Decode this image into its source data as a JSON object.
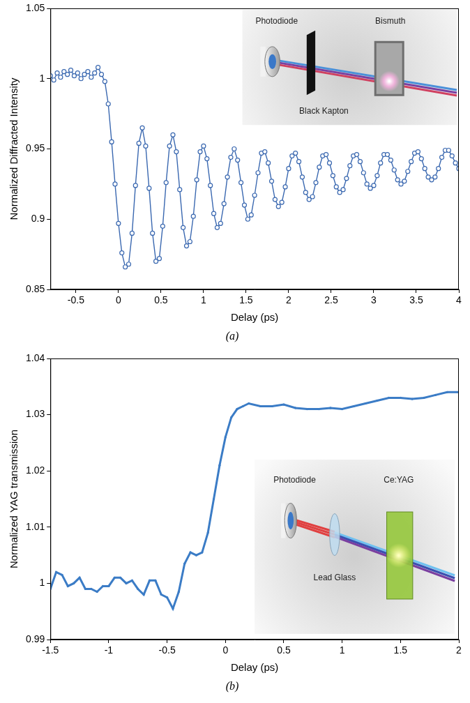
{
  "chart_data": [
    {
      "type": "line",
      "title": "(a)",
      "x_label": "Delay (ps)",
      "y_label": "Normalized Diffracted Intensity",
      "color": "#3a68b0",
      "marker": "open_circle",
      "line_style": "solid",
      "grid": false,
      "xlim": [
        -0.8,
        4
      ],
      "xticks": [
        -0.5,
        0,
        0.5,
        1,
        1.5,
        2,
        2.5,
        3,
        3.5,
        4
      ],
      "ylim": [
        0.85,
        1.05
      ],
      "yticks": [
        0.85,
        0.9,
        0.95,
        1,
        1.05
      ],
      "annotations": [
        "Photodiode",
        "Bismuth",
        "Black Kapton"
      ],
      "x": [
        -0.8,
        -0.76,
        -0.72,
        -0.68,
        -0.64,
        -0.6,
        -0.56,
        -0.52,
        -0.48,
        -0.44,
        -0.4,
        -0.36,
        -0.32,
        -0.28,
        -0.24,
        -0.2,
        -0.16,
        -0.12,
        -0.08,
        -0.04,
        0,
        0.04,
        0.08,
        0.12,
        0.16,
        0.2,
        0.24,
        0.28,
        0.32,
        0.36,
        0.4,
        0.44,
        0.48,
        0.52,
        0.56,
        0.6,
        0.64,
        0.68,
        0.72,
        0.76,
        0.8,
        0.84,
        0.88,
        0.92,
        0.96,
        1,
        1.04,
        1.08,
        1.12,
        1.16,
        1.2,
        1.24,
        1.28,
        1.32,
        1.36,
        1.4,
        1.44,
        1.48,
        1.52,
        1.56,
        1.6,
        1.64,
        1.68,
        1.72,
        1.76,
        1.8,
        1.84,
        1.88,
        1.92,
        1.96,
        2,
        2.04,
        2.08,
        2.12,
        2.16,
        2.2,
        2.24,
        2.28,
        2.32,
        2.36,
        2.4,
        2.44,
        2.48,
        2.52,
        2.56,
        2.6,
        2.64,
        2.68,
        2.72,
        2.76,
        2.8,
        2.84,
        2.88,
        2.92,
        2.96,
        3,
        3.04,
        3.08,
        3.12,
        3.16,
        3.2,
        3.24,
        3.28,
        3.32,
        3.36,
        3.4,
        3.44,
        3.48,
        3.52,
        3.56,
        3.6,
        3.64,
        3.68,
        3.72,
        3.76,
        3.8,
        3.84,
        3.88,
        3.92,
        3.96,
        4
      ],
      "values": [
        1.002,
        0.999,
        1.004,
        1.001,
        1.005,
        1.003,
        1.006,
        1.002,
        1.004,
        1.0,
        1.003,
        1.005,
        1.001,
        1.004,
        1.008,
        1.003,
        0.998,
        0.982,
        0.955,
        0.925,
        0.897,
        0.876,
        0.866,
        0.868,
        0.89,
        0.924,
        0.954,
        0.965,
        0.952,
        0.922,
        0.89,
        0.87,
        0.872,
        0.895,
        0.926,
        0.952,
        0.96,
        0.948,
        0.921,
        0.894,
        0.881,
        0.884,
        0.902,
        0.928,
        0.948,
        0.952,
        0.943,
        0.924,
        0.904,
        0.894,
        0.897,
        0.911,
        0.93,
        0.944,
        0.95,
        0.942,
        0.926,
        0.91,
        0.9,
        0.903,
        0.917,
        0.933,
        0.947,
        0.948,
        0.94,
        0.927,
        0.914,
        0.909,
        0.912,
        0.923,
        0.936,
        0.945,
        0.947,
        0.941,
        0.93,
        0.919,
        0.914,
        0.916,
        0.926,
        0.937,
        0.945,
        0.946,
        0.94,
        0.931,
        0.923,
        0.919,
        0.921,
        0.929,
        0.938,
        0.945,
        0.946,
        0.941,
        0.933,
        0.925,
        0.922,
        0.924,
        0.931,
        0.94,
        0.946,
        0.946,
        0.942,
        0.935,
        0.928,
        0.925,
        0.927,
        0.934,
        0.941,
        0.947,
        0.948,
        0.943,
        0.936,
        0.93,
        0.928,
        0.93,
        0.936,
        0.944,
        0.949,
        0.949,
        0.945,
        0.94,
        0.936
      ]
    },
    {
      "type": "line",
      "title": "(b)",
      "x_label": "Delay (ps)",
      "y_label": "Normalized YAG transmission",
      "color": "#3b7cc6",
      "marker": "circle",
      "line_style": "solid",
      "grid": false,
      "xlim": [
        -1.5,
        2
      ],
      "xticks": [
        -1.5,
        -1,
        -0.5,
        0,
        0.5,
        1,
        1.5,
        2
      ],
      "ylim": [
        0.99,
        1.04
      ],
      "yticks": [
        0.99,
        1,
        1.01,
        1.02,
        1.03,
        1.04
      ],
      "annotations": [
        "Photodiode",
        "Lead Glass",
        "Ce:YAG"
      ],
      "x": [
        -1.5,
        -1.45,
        -1.4,
        -1.35,
        -1.3,
        -1.25,
        -1.2,
        -1.15,
        -1.1,
        -1.05,
        -1,
        -0.95,
        -0.9,
        -0.85,
        -0.8,
        -0.75,
        -0.7,
        -0.65,
        -0.6,
        -0.55,
        -0.5,
        -0.45,
        -0.4,
        -0.35,
        -0.3,
        -0.25,
        -0.2,
        -0.15,
        -0.1,
        -0.05,
        0,
        0.05,
        0.1,
        0.15,
        0.2,
        0.3,
        0.4,
        0.5,
        0.6,
        0.7,
        0.8,
        0.9,
        1,
        1.1,
        1.2,
        1.3,
        1.4,
        1.5,
        1.6,
        1.7,
        1.8,
        1.9,
        2
      ],
      "values": [
        0.999,
        1.002,
        1.0015,
        0.9995,
        1.0,
        1.001,
        0.999,
        0.999,
        0.9985,
        0.9995,
        0.9995,
        1.001,
        1.001,
        1.0,
        1.0005,
        0.999,
        0.998,
        1.0005,
        1.0005,
        0.998,
        0.9975,
        0.9955,
        0.9985,
        1.0035,
        1.0055,
        1.005,
        1.0055,
        1.009,
        1.015,
        1.021,
        1.026,
        1.0295,
        1.031,
        1.0315,
        1.032,
        1.0315,
        1.0315,
        1.0318,
        1.0312,
        1.031,
        1.031,
        1.0312,
        1.031,
        1.0315,
        1.032,
        1.0325,
        1.033,
        1.033,
        1.0328,
        1.033,
        1.0335,
        1.034,
        1.034
      ]
    }
  ]
}
